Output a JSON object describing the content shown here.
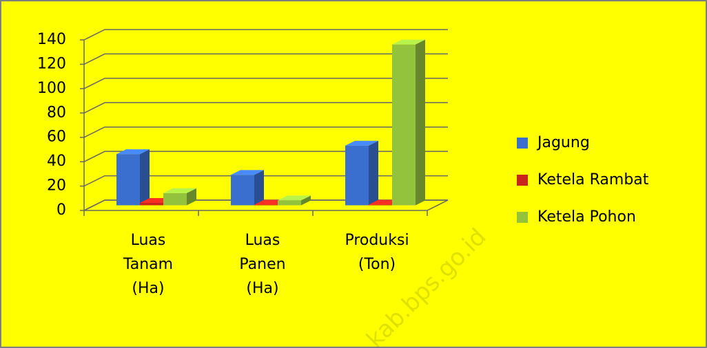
{
  "chart_data": {
    "type": "bar3d",
    "categories": [
      "Luas Tanam (Ha)",
      "Luas Panen (Ha)",
      "Produksi (Ton)"
    ],
    "series": [
      {
        "name": "Jagung",
        "color": "#3a6fd0",
        "values": [
          42,
          25,
          49
        ]
      },
      {
        "name": "Ketela Rambat",
        "color": "#c8261c",
        "values": [
          2,
          0.5,
          0.5
        ]
      },
      {
        "name": "Ketela Pohon",
        "color": "#93c23c",
        "values": [
          10,
          4,
          132
        ]
      }
    ],
    "ylim": [
      0,
      140
    ],
    "yticks": [
      0,
      20,
      40,
      60,
      80,
      100,
      120,
      140
    ],
    "grid": true,
    "legend": "right",
    "watermark": "kab.bps.go.id"
  }
}
